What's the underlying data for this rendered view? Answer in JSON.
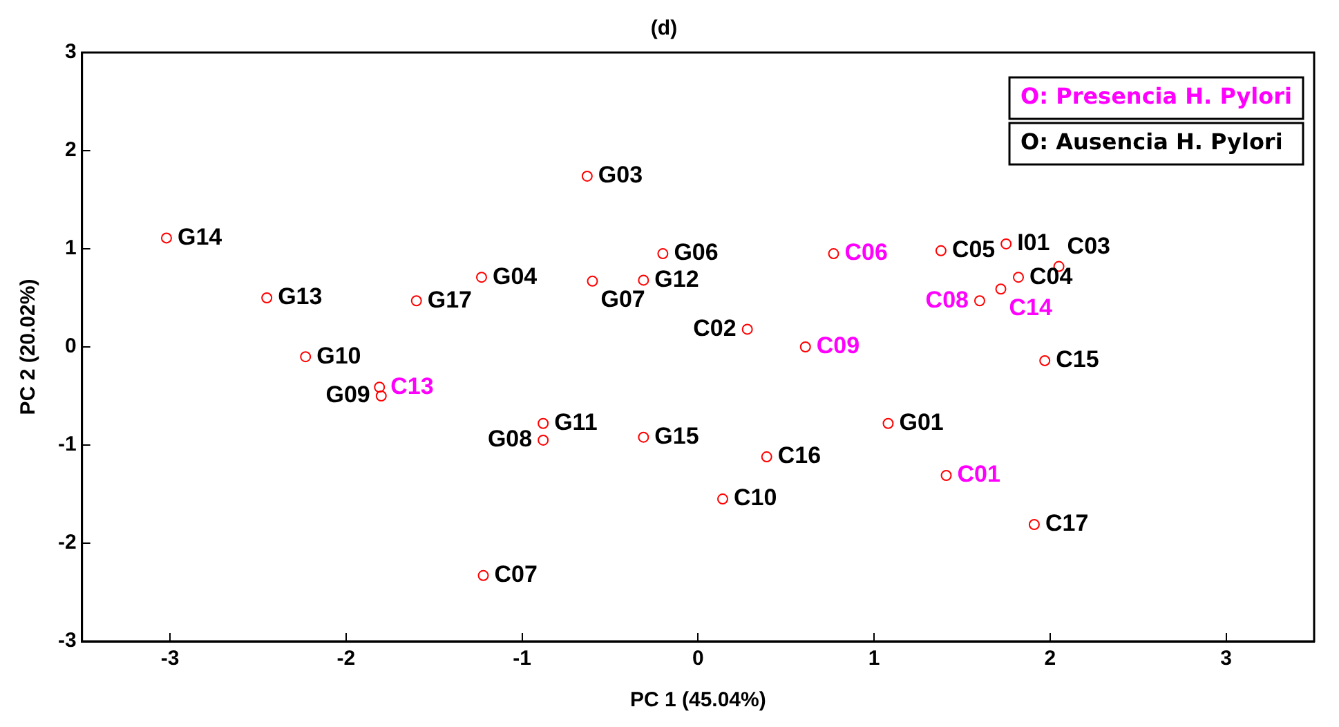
{
  "chart_data": {
    "type": "scatter",
    "title": "(d)",
    "xlabel": "PC 1 (45.04%)",
    "ylabel": "PC 2 (20.02%)",
    "xlim": [
      -3.5,
      3.5
    ],
    "xticks": [
      -3,
      -2,
      -1,
      0,
      1,
      2,
      3
    ],
    "ylim": [
      -3,
      3
    ],
    "yticks": [
      -3,
      -2,
      -1,
      0,
      1,
      2,
      3
    ],
    "grid": false,
    "legend": "top right",
    "marker": "circle",
    "series": [
      {
        "name": "O: Presencia H. Pylori",
        "color": "#ff00ff",
        "colors": [
          "#ff0000",
          "#ff0000",
          "#ff0000",
          "#ff0000",
          "#ff0000",
          "#ff0000"
        ],
        "x": [
          -1.81,
          0.77,
          0.61,
          1.6,
          1.72,
          1.41
        ],
        "values": [
          -0.41,
          0.95,
          0.0,
          0.47,
          0.59,
          -1.31
        ],
        "value_labels": [
          "C13",
          "C06",
          "C09",
          "C08",
          "C14",
          "C01"
        ]
      },
      {
        "name": "O: Ausencia H. Pylori",
        "color": "#000000",
        "colors": [
          "#ff0000",
          "#ff0000",
          "#ff0000",
          "#ff0000",
          "#ff0000",
          "#ff0000",
          "#ff0000",
          "#ff0000",
          "#ff0000",
          "#ff0000",
          "#ff0000",
          "#ff0000",
          "#ff0000",
          "#ff0000",
          "#ff0000",
          "#ff0000",
          "#ff0000",
          "#ff0000",
          "#ff0000",
          "#ff0000",
          "#ff0000",
          "#ff0000",
          "#ff0000",
          "#ff0000"
        ],
        "x": [
          -3.02,
          -2.45,
          -2.23,
          -1.8,
          -1.23,
          -1.6,
          -0.63,
          -0.6,
          -0.31,
          -0.2,
          -0.88,
          -0.88,
          -0.31,
          -1.22,
          0.28,
          0.39,
          0.14,
          1.08,
          1.38,
          1.75,
          1.82,
          2.05,
          1.97,
          1.91
        ],
        "values": [
          1.11,
          0.5,
          -0.1,
          -0.5,
          0.71,
          0.47,
          1.74,
          0.67,
          0.68,
          0.95,
          -0.78,
          -0.95,
          -0.92,
          -2.33,
          0.18,
          -1.12,
          -1.55,
          -0.78,
          0.98,
          1.05,
          0.71,
          0.82,
          -0.14,
          -1.81
        ],
        "value_labels": [
          "G14",
          "G13",
          "G10",
          "G09",
          "G04",
          "G17",
          "G03",
          "G07",
          "G12",
          "G06",
          "G11",
          "G08",
          "G15",
          "C07",
          "C02",
          "C16",
          "C10",
          "G01",
          "C05",
          "I01",
          "C04",
          "C03",
          "C15",
          "C17"
        ]
      }
    ]
  }
}
